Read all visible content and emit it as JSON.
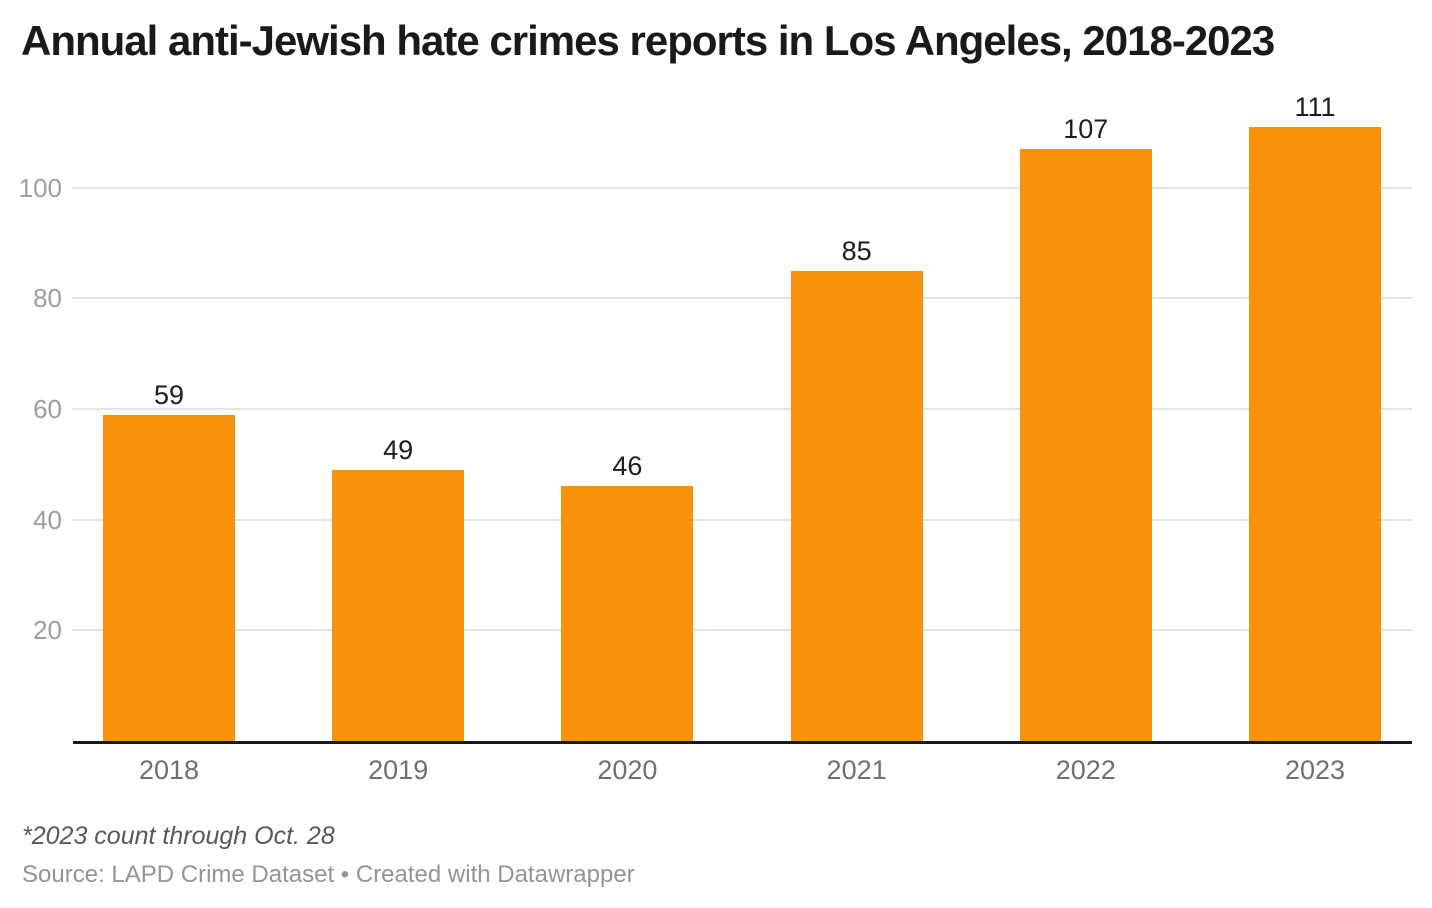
{
  "header": {
    "title": "Annual anti-Jewish hate crimes reports in Los Angeles, 2018-2023"
  },
  "chart_data": {
    "type": "bar",
    "title": "Annual anti-Jewish hate crimes reports in Los Angeles, 2018-2023",
    "categories": [
      "2018",
      "2019",
      "2020",
      "2021",
      "2022",
      "2023"
    ],
    "values": [
      59,
      49,
      46,
      85,
      107,
      111
    ],
    "xlabel": "",
    "ylabel": "",
    "ylim": [
      0,
      120
    ],
    "yticks": [
      20,
      40,
      60,
      80,
      100
    ],
    "grid": "horizontal",
    "legend": "none",
    "bar_color": "#F8920A",
    "axis_line_color": "#1a1a1a"
  },
  "footer": {
    "footnote": "*2023 count through Oct. 28",
    "source": "Source: LAPD Crime Dataset • Created with Datawrapper"
  }
}
